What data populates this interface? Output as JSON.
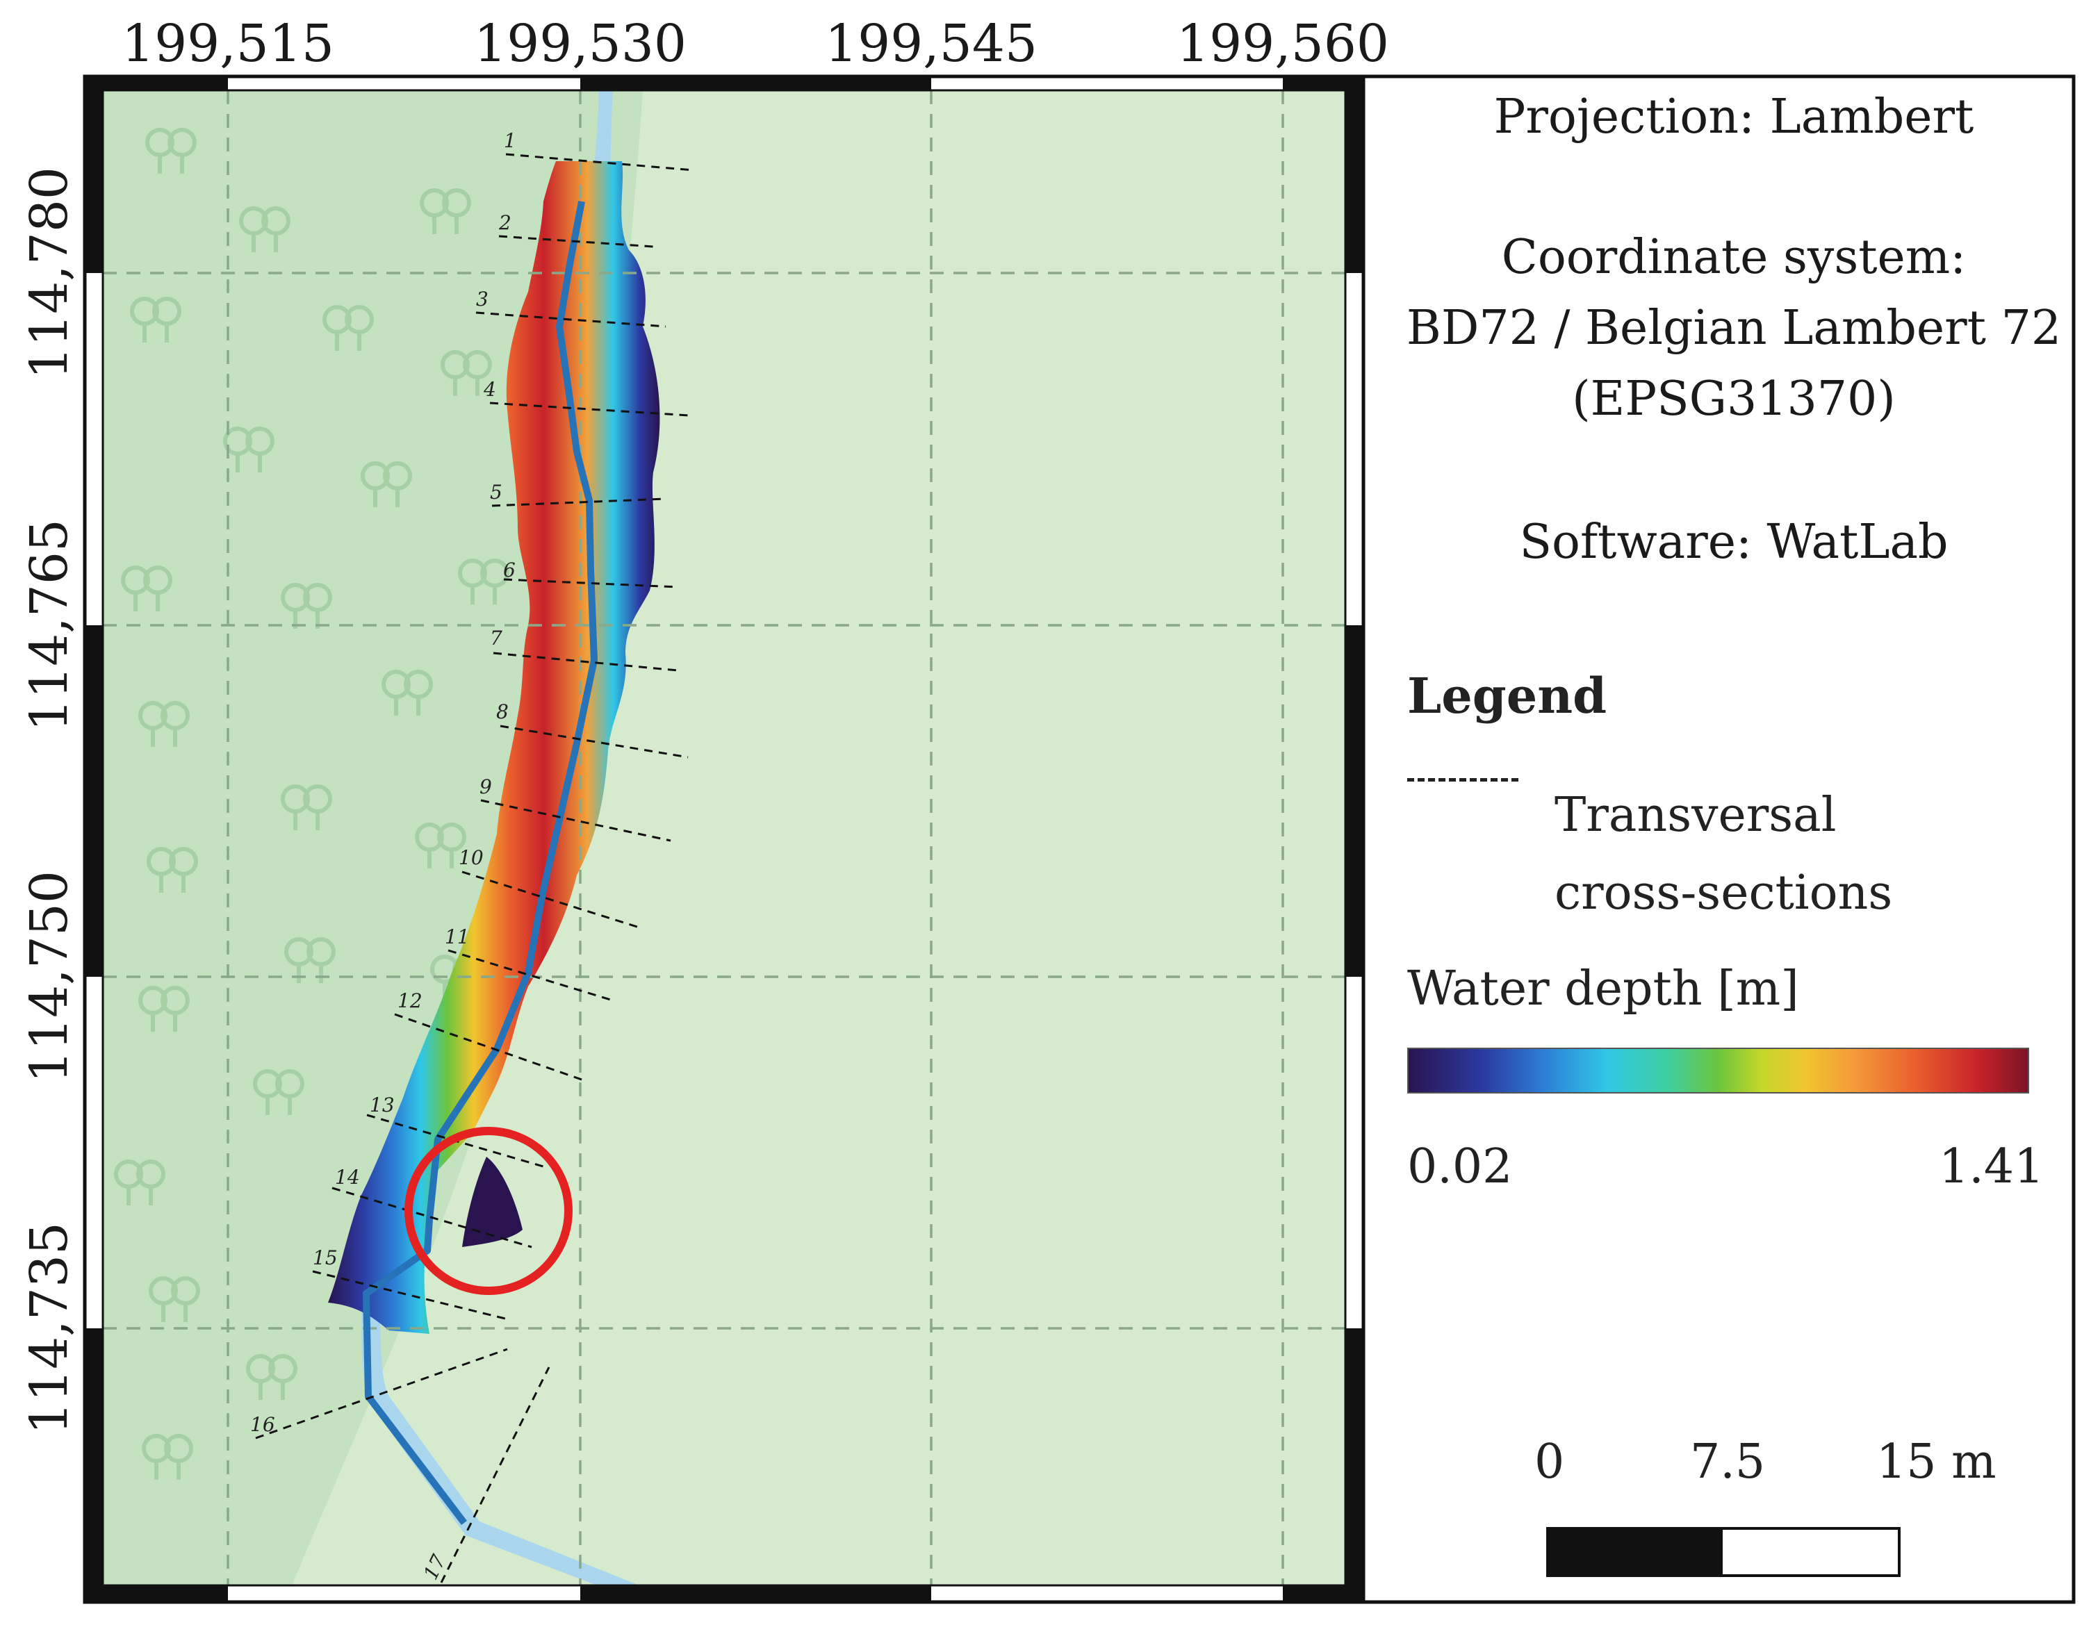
{
  "map": {
    "x_ticks": [
      "199,515",
      "199,530",
      "199,545",
      "199,560"
    ],
    "y_ticks": [
      "114,780",
      "114,765",
      "114,750",
      "114,735"
    ],
    "cross_sections": [
      "1",
      "2",
      "3",
      "4",
      "5",
      "6",
      "7",
      "8",
      "9",
      "10",
      "11",
      "12",
      "13",
      "14",
      "15",
      "16",
      "17"
    ],
    "colors": {
      "forest": "#c4e2c0",
      "field": "#d6ebce",
      "river": "#a9d6ec",
      "centerline": "#2673b8",
      "highlight_circle": "#e52222"
    }
  },
  "info": {
    "projection": "Projection: Lambert",
    "coord_system_line1": "Coordinate system:",
    "coord_system_line2": "BD72 / Belgian Lambert 72",
    "coord_system_line3": "(EPSG31370)",
    "software": "Software: WatLab"
  },
  "legend": {
    "title": "Legend",
    "cross_section_line1": "Transversal",
    "cross_section_line2": "cross-sections",
    "depth_title": "Water depth [m]",
    "depth_min": "0.02",
    "depth_max": "1.41"
  },
  "scale": {
    "labels": [
      "0",
      "7.5",
      "15 m"
    ]
  }
}
